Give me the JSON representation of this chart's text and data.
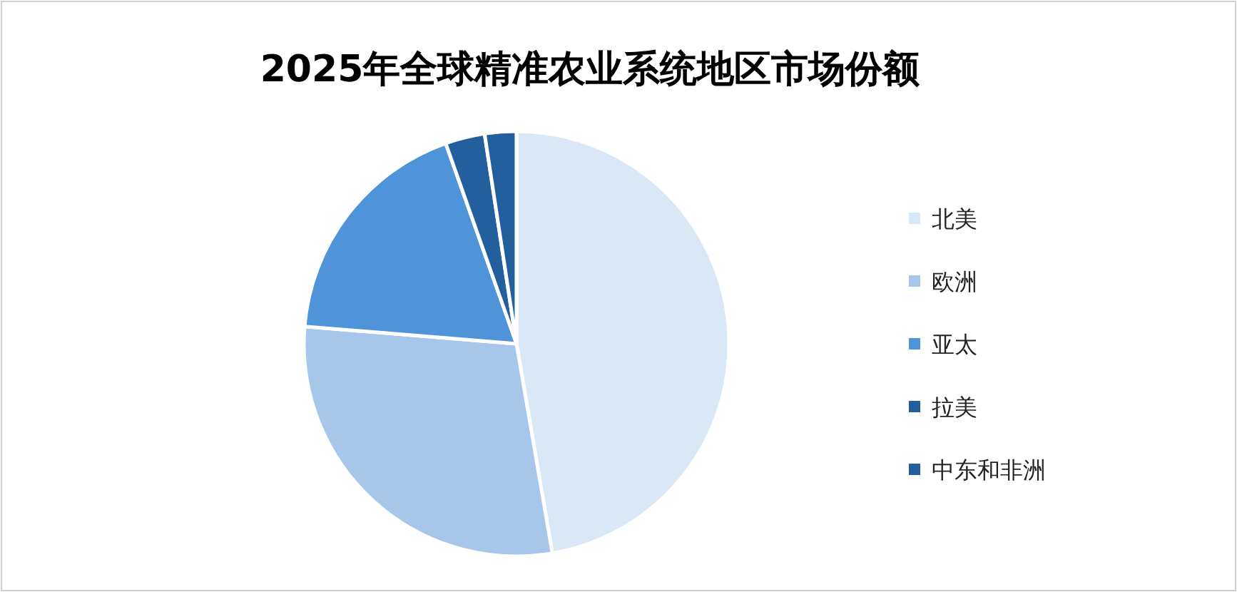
{
  "chart_data": {
    "type": "pie",
    "title": "2025年全球精准农业系统地区市场份额",
    "categories": [
      "北美",
      "欧洲",
      "亚太",
      "拉美",
      "中东和非洲"
    ],
    "values": [
      47.3,
      29.0,
      18.3,
      3.0,
      2.4
    ],
    "colors": [
      "#dae7f5",
      "#a6c7ea",
      "#4f94d9",
      "#225f9c",
      "#225f9c"
    ],
    "legend": "right"
  }
}
